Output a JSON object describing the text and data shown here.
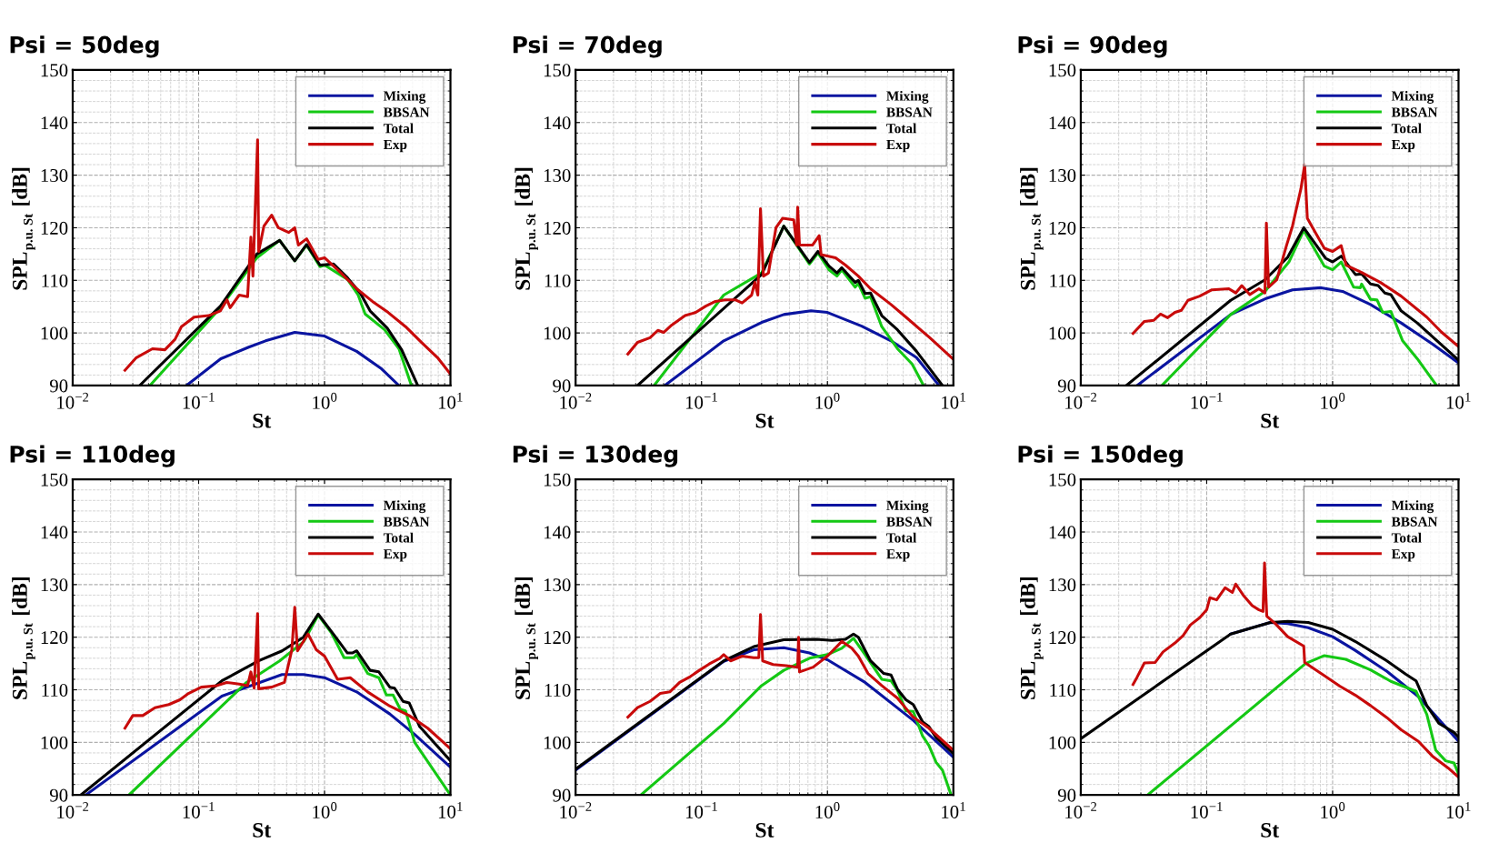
{
  "chart_data": [
    {
      "type": "line",
      "title": "Psi = 50deg",
      "xlabel": "St",
      "ylabel": "SPL$_{p.u. St}$ [dB]",
      "log": "x",
      "grid": true,
      "legend": "top right",
      "xlim": [
        0.01,
        10
      ],
      "ylim": [
        90,
        150
      ],
      "xticks": [
        {
          "value": 0.01,
          "label": "10$^{−2}$"
        },
        {
          "value": 0.1,
          "label": "10$^{−1}$"
        },
        {
          "value": 1,
          "label": "10$^{0}$"
        },
        {
          "value": 10,
          "label": "10$^{1}$"
        }
      ],
      "yticks": [
        90,
        100,
        110,
        120,
        130,
        140,
        150
      ],
      "series": [
        {
          "name": "Mixing",
          "color": "#0a14a0",
          "x": [
            0.08,
            0.15,
            0.25,
            0.34,
            0.58,
            1.0,
            1.8,
            2.8,
            3.9
          ],
          "values": [
            90,
            95.1,
            97.3,
            98.5,
            100.1,
            99.4,
            96.5,
            93.3,
            90
          ]
        },
        {
          "name": "BBSAN",
          "color": "#14c814",
          "x": [
            0.041,
            0.149,
            0.29,
            0.44,
            0.58,
            0.72,
            0.92,
            1.0,
            1.52,
            1.85,
            2.1,
            3.0,
            3.9,
            4.9
          ],
          "values": [
            90,
            104.8,
            114.3,
            117.6,
            113.7,
            116.7,
            112.6,
            112.9,
            110.2,
            107.2,
            103.6,
            100.6,
            97.0,
            90
          ]
        },
        {
          "name": "Total",
          "color": "#000000",
          "x": [
            0.034,
            0.149,
            0.29,
            0.44,
            0.58,
            0.72,
            0.92,
            1.18,
            1.52,
            1.93,
            2.3,
            3.15,
            4.1,
            5.5
          ],
          "values": [
            90,
            105.1,
            115.0,
            117.6,
            113.7,
            116.8,
            112.9,
            113.1,
            110.5,
            107.5,
            104.2,
            100.9,
            96.8,
            90
          ]
        },
        {
          "name": "Exp",
          "color": "#c80a0a",
          "x": [
            0.026,
            0.032,
            0.043,
            0.054,
            0.065,
            0.073,
            0.092,
            0.12,
            0.149,
            0.168,
            0.178,
            0.21,
            0.245,
            0.26,
            0.27,
            0.294,
            0.3,
            0.33,
            0.38,
            0.43,
            0.52,
            0.58,
            0.62,
            0.72,
            0.89,
            1.0,
            1.35,
            1.8,
            2.4,
            3.2,
            4.4,
            5.9,
            7.9,
            10
          ],
          "values": [
            92.9,
            95.3,
            97.0,
            96.8,
            98.8,
            101.2,
            103.0,
            103.3,
            104.2,
            106.3,
            104.8,
            107.2,
            106.9,
            118.2,
            110.8,
            136.7,
            115.5,
            120.3,
            122.4,
            120.0,
            119.1,
            120.0,
            116.7,
            117.9,
            114.0,
            114.3,
            111.4,
            108.4,
            106.0,
            103.9,
            101.2,
            98.2,
            95.3,
            92.2
          ]
        }
      ]
    },
    {
      "type": "line",
      "title": "Psi = 70deg",
      "xlabel": "St",
      "ylabel": "SPL$_{p.u. St}$ [dB]",
      "log": "x",
      "grid": true,
      "legend": "top right",
      "xlim": [
        0.01,
        10
      ],
      "ylim": [
        90,
        150
      ],
      "xticks": [
        {
          "value": 0.01,
          "label": "10$^{−2}$"
        },
        {
          "value": 0.1,
          "label": "10$^{−1}$"
        },
        {
          "value": 1,
          "label": "10$^{0}$"
        },
        {
          "value": 10,
          "label": "10$^{1}$"
        }
      ],
      "yticks": [
        90,
        100,
        110,
        120,
        130,
        140,
        150
      ],
      "series": [
        {
          "name": "Mixing",
          "color": "#0a14a0",
          "x": [
            0.051,
            0.15,
            0.3,
            0.45,
            0.74,
            1.0,
            1.87,
            3.2,
            5.1,
            7.7
          ],
          "values": [
            90,
            98.5,
            102.0,
            103.5,
            104.2,
            103.9,
            101.3,
            98.5,
            95.3,
            90
          ]
        },
        {
          "name": "BBSAN",
          "color": "#14c814",
          "x": [
            0.042,
            0.15,
            0.3,
            0.45,
            0.72,
            0.84,
            1.03,
            1.19,
            1.3,
            1.66,
            1.76,
            1.99,
            2.2,
            2.7,
            3.6,
            4.7,
            5.8
          ],
          "values": [
            90,
            107.2,
            111.4,
            120.3,
            113.1,
            115.2,
            112.0,
            110.8,
            112.0,
            108.7,
            109.4,
            106.6,
            106.9,
            101.2,
            97.0,
            94.1,
            90
          ]
        },
        {
          "name": "Total",
          "color": "#000000",
          "x": [
            0.031,
            0.3,
            0.45,
            0.72,
            0.84,
            1.03,
            1.19,
            1.3,
            1.66,
            1.76,
            1.99,
            2.2,
            2.7,
            3.6,
            5.1,
            8.2
          ],
          "values": [
            90,
            111.1,
            120.3,
            113.4,
            115.5,
            112.7,
            111.4,
            112.4,
            109.6,
            110.0,
            107.5,
            107.6,
            103.3,
            100.6,
            96.5,
            90
          ]
        },
        {
          "name": "Exp",
          "color": "#c80a0a",
          "x": [
            0.026,
            0.031,
            0.039,
            0.045,
            0.05,
            0.058,
            0.074,
            0.09,
            0.108,
            0.129,
            0.154,
            0.185,
            0.21,
            0.25,
            0.265,
            0.28,
            0.294,
            0.31,
            0.34,
            0.39,
            0.44,
            0.54,
            0.57,
            0.58,
            0.6,
            0.76,
            0.86,
            0.89,
            1.16,
            1.39,
            1.76,
            2.2,
            3.2,
            4.2,
            6.5,
            10
          ],
          "values": [
            96.0,
            98.2,
            99.1,
            100.5,
            100.1,
            101.5,
            103.3,
            103.9,
            105.1,
            106.0,
            106.3,
            106.3,
            105.7,
            107.2,
            109.6,
            107.2,
            123.6,
            110.8,
            111.4,
            120.0,
            121.8,
            121.5,
            116.7,
            123.9,
            116.7,
            116.7,
            118.5,
            114.9,
            114.3,
            112.9,
            110.8,
            108.4,
            105.4,
            103.0,
            99.1,
            95.0
          ]
        }
      ]
    },
    {
      "type": "line",
      "title": "Psi = 90deg",
      "xlabel": "St",
      "ylabel": "SPL$_{p.u. St}$ [dB]",
      "log": "x",
      "grid": true,
      "legend": "top right",
      "xlim": [
        0.01,
        10
      ],
      "ylim": [
        90,
        150
      ],
      "xticks": [
        {
          "value": 0.01,
          "label": "10$^{−2}$"
        },
        {
          "value": 0.1,
          "label": "10$^{−1}$"
        },
        {
          "value": 1,
          "label": "10$^{0}$"
        },
        {
          "value": 10,
          "label": "10$^{1}$"
        }
      ],
      "yticks": [
        90,
        100,
        110,
        120,
        130,
        140,
        150
      ],
      "series": [
        {
          "name": "Mixing",
          "color": "#0a14a0",
          "x": [
            0.028,
            0.155,
            0.3,
            0.48,
            0.81,
            1.2,
            2.0,
            3.5,
            6.2,
            10
          ],
          "values": [
            90,
            103.5,
            106.6,
            108.2,
            108.6,
            107.9,
            105.4,
            101.9,
            97.9,
            94.3
          ]
        },
        {
          "name": "BBSAN",
          "color": "#14c814",
          "x": [
            0.044,
            0.155,
            0.29,
            0.45,
            0.59,
            0.86,
            1.0,
            1.17,
            1.47,
            1.66,
            1.7,
            2.0,
            2.25,
            2.5,
            2.9,
            3.6,
            4.7,
            6.7
          ],
          "values": [
            90,
            103.5,
            107.9,
            113.5,
            119.5,
            112.7,
            112.0,
            113.5,
            108.7,
            108.6,
            109.3,
            106.4,
            106.3,
            103.9,
            104.1,
            98.5,
            95.1,
            90
          ]
        },
        {
          "name": "Total",
          "color": "#000000",
          "x": [
            0.023,
            0.155,
            0.29,
            0.44,
            0.59,
            0.88,
            1.0,
            1.17,
            1.52,
            1.7,
            2.0,
            2.3,
            2.6,
            2.9,
            3.5,
            4.7,
            10
          ],
          "values": [
            90,
            106.2,
            110.1,
            114.4,
            120.0,
            114.2,
            113.5,
            114.6,
            111.1,
            111.2,
            109.3,
            109.0,
            107.6,
            107.3,
            104.2,
            101.9,
            94.8
          ]
        },
        {
          "name": "Exp",
          "color": "#c80a0a",
          "x": [
            0.026,
            0.032,
            0.038,
            0.043,
            0.049,
            0.056,
            0.063,
            0.071,
            0.088,
            0.11,
            0.15,
            0.17,
            0.19,
            0.22,
            0.26,
            0.29,
            0.298,
            0.31,
            0.36,
            0.43,
            0.48,
            0.56,
            0.6,
            0.63,
            0.69,
            0.86,
            1.0,
            1.17,
            1.28,
            1.7,
            2.4,
            3.5,
            5.6,
            7.3,
            10
          ],
          "values": [
            99.9,
            102.2,
            102.4,
            103.6,
            102.9,
            103.9,
            104.3,
            106.2,
            107.0,
            108.2,
            108.4,
            107.6,
            109.0,
            107.3,
            108.4,
            107.6,
            120.9,
            108.7,
            110.1,
            116.6,
            120.3,
            127.4,
            132.0,
            121.8,
            120.1,
            116.1,
            115.5,
            116.6,
            112.9,
            111.5,
            109.6,
            107.0,
            103.0,
            100.2,
            97.4
          ]
        }
      ]
    },
    {
      "type": "line",
      "title": "Psi = 110deg",
      "xlabel": "St",
      "ylabel": "SPL$_{p.u. St}$ [dB]",
      "log": "x",
      "grid": true,
      "legend": "top right",
      "xlim": [
        0.01,
        10
      ],
      "ylim": [
        90,
        150
      ],
      "xticks": [
        {
          "value": 0.01,
          "label": "10$^{−2}$"
        },
        {
          "value": 0.1,
          "label": "10$^{−1}$"
        },
        {
          "value": 1,
          "label": "10$^{0}$"
        },
        {
          "value": 10,
          "label": "10$^{1}$"
        }
      ],
      "yticks": [
        90,
        100,
        110,
        120,
        130,
        140,
        150
      ],
      "series": [
        {
          "name": "Mixing",
          "color": "#0a14a0",
          "x": [
            0.0127,
            0.153,
            0.46,
            0.68,
            1.0,
            1.8,
            3.3,
            5.2,
            10
          ],
          "values": [
            90,
            108.8,
            112.9,
            112.9,
            112.3,
            109.6,
            105.4,
            101.5,
            95.3
          ]
        },
        {
          "name": "BBSAN",
          "color": "#14c814",
          "x": [
            0.028,
            0.24,
            0.44,
            0.68,
            0.89,
            1.13,
            1.43,
            1.71,
            1.8,
            2.2,
            2.7,
            3.1,
            3.5,
            4.0,
            4.4,
            5.2,
            10
          ],
          "values": [
            90,
            111.4,
            115.5,
            119.1,
            124.2,
            120.9,
            116.1,
            116.1,
            116.7,
            113.1,
            112.3,
            109.0,
            109.0,
            106.3,
            106.0,
            100.0,
            90
          ]
        },
        {
          "name": "Total",
          "color": "#000000",
          "x": [
            0.0116,
            0.153,
            0.3,
            0.46,
            0.68,
            0.89,
            1.2,
            1.52,
            1.66,
            1.8,
            2.3,
            2.7,
            3.3,
            3.6,
            4.2,
            4.7,
            5.7,
            10
          ],
          "values": [
            90,
            111.7,
            115.5,
            117.4,
            120.0,
            124.4,
            120.3,
            117.0,
            117.0,
            117.4,
            113.7,
            113.4,
            110.5,
            110.3,
            107.8,
            107.5,
            103.0,
            96.5
          ]
        },
        {
          "name": "Exp",
          "color": "#c80a0a",
          "x": [
            0.026,
            0.03,
            0.036,
            0.045,
            0.058,
            0.071,
            0.083,
            0.105,
            0.14,
            0.167,
            0.21,
            0.245,
            0.26,
            0.276,
            0.294,
            0.3,
            0.38,
            0.48,
            0.55,
            0.58,
            0.61,
            0.74,
            0.86,
            1.0,
            1.27,
            1.6,
            2.2,
            3.3,
            4.7,
            6.6,
            10
          ],
          "values": [
            102.7,
            105.1,
            105.1,
            106.6,
            107.2,
            108.1,
            109.3,
            110.5,
            110.8,
            111.4,
            111.1,
            110.8,
            113.4,
            110.3,
            124.5,
            110.2,
            110.5,
            111.4,
            117.6,
            125.7,
            117.4,
            120.6,
            117.6,
            116.4,
            112.0,
            112.3,
            109.6,
            106.9,
            105.1,
            102.7,
            98.8
          ]
        }
      ]
    },
    {
      "type": "line",
      "title": "Psi = 130deg",
      "xlabel": "St",
      "ylabel": "SPL$_{p.u. St}$ [dB]",
      "log": "x",
      "grid": true,
      "legend": "top right",
      "xlim": [
        0.01,
        10
      ],
      "ylim": [
        90,
        150
      ],
      "xticks": [
        {
          "value": 0.01,
          "label": "10$^{−2}$"
        },
        {
          "value": 0.1,
          "label": "10$^{−1}$"
        },
        {
          "value": 1,
          "label": "10$^{0}$"
        },
        {
          "value": 10,
          "label": "10$^{1}$"
        }
      ],
      "yticks": [
        90,
        100,
        110,
        120,
        130,
        140,
        150
      ],
      "series": [
        {
          "name": "Mixing",
          "color": "#0a14a0",
          "x": [
            0.0101,
            0.15,
            0.26,
            0.45,
            0.72,
            1.0,
            1.99,
            4.8,
            10
          ],
          "values": [
            94.8,
            115.4,
            117.6,
            118.0,
            117.0,
            115.7,
            111.4,
            104.2,
            97.2
          ]
        },
        {
          "name": "BBSAN",
          "color": "#14c814",
          "x": [
            0.033,
            0.15,
            0.3,
            0.45,
            0.72,
            1.0,
            1.3,
            1.61,
            1.99,
            2.7,
            3.2,
            3.6,
            4.2,
            4.8,
            5.7,
            6.4,
            7.3,
            8.2,
            9.6
          ],
          "values": [
            90,
            103.6,
            110.8,
            113.7,
            116.0,
            116.7,
            117.9,
            119.8,
            116.7,
            112.0,
            111.7,
            109.9,
            106.0,
            105.9,
            101.2,
            99.4,
            96.2,
            94.7,
            90
          ]
        },
        {
          "name": "Total",
          "color": "#000000",
          "x": [
            0.0101,
            0.15,
            0.26,
            0.45,
            0.81,
            1.09,
            1.39,
            1.61,
            1.76,
            2.2,
            2.8,
            3.2,
            3.6,
            4.2,
            4.8,
            5.7,
            6.4,
            7.3,
            10
          ],
          "values": [
            95.0,
            115.5,
            118.2,
            119.5,
            119.6,
            119.4,
            119.6,
            120.6,
            120.0,
            115.5,
            113.1,
            112.8,
            110.1,
            108.1,
            107.2,
            103.9,
            103.0,
            100.9,
            97.9
          ]
        },
        {
          "name": "Exp",
          "color": "#c80a0a",
          "x": [
            0.026,
            0.031,
            0.039,
            0.047,
            0.056,
            0.067,
            0.08,
            0.096,
            0.115,
            0.14,
            0.15,
            0.17,
            0.21,
            0.26,
            0.285,
            0.294,
            0.306,
            0.37,
            0.47,
            0.58,
            0.59,
            0.6,
            0.77,
            1.0,
            1.3,
            1.56,
            1.76,
            2.1,
            2.7,
            3.6,
            4.8,
            6.4,
            10
          ],
          "values": [
            104.8,
            106.6,
            107.8,
            109.3,
            109.6,
            111.4,
            112.4,
            113.7,
            114.9,
            116.0,
            116.7,
            115.5,
            116.4,
            116.1,
            116.1,
            124.3,
            115.5,
            114.8,
            114.6,
            114.3,
            120.0,
            113.4,
            114.3,
            116.4,
            119.2,
            117.9,
            116.4,
            113.1,
            110.8,
            108.4,
            104.8,
            102.7,
            98.5
          ]
        }
      ]
    },
    {
      "type": "line",
      "title": "Psi = 150deg",
      "xlabel": "St",
      "ylabel": "SPL$_{p.u. St}$ [dB]",
      "log": "x",
      "grid": true,
      "legend": "top right",
      "xlim": [
        0.01,
        10
      ],
      "ylim": [
        90,
        150
      ],
      "xticks": [
        {
          "value": 0.01,
          "label": "10$^{−2}$"
        },
        {
          "value": 0.1,
          "label": "10$^{−1}$"
        },
        {
          "value": 1,
          "label": "10$^{0}$"
        },
        {
          "value": 10,
          "label": "10$^{1}$"
        }
      ],
      "yticks": [
        90,
        100,
        110,
        120,
        130,
        140,
        150
      ],
      "series": [
        {
          "name": "Mixing",
          "color": "#0a14a0",
          "x": [
            0.155,
            0.32,
            0.44,
            0.64,
            1.0,
            1.51,
            2.7,
            4.8,
            10
          ],
          "values": [
            120.6,
            122.8,
            122.6,
            121.8,
            120.1,
            117.5,
            113.5,
            108.7,
            100.2
          ]
        },
        {
          "name": "BBSAN",
          "color": "#14c814",
          "x": [
            0.034,
            0.61,
            0.86,
            1.27,
            2.0,
            2.9,
            3.9,
            4.6,
            5.6,
            6.6,
            7.9,
            9.2,
            10
          ],
          "values": [
            90,
            115.0,
            116.5,
            115.8,
            113.8,
            111.6,
            110.4,
            109.7,
            105.3,
            98.5,
            96.5,
            96.1,
            94.0
          ]
        },
        {
          "name": "Total",
          "color": "#000000",
          "x": [
            0.01,
            0.155,
            0.32,
            0.44,
            0.64,
            1.0,
            1.51,
            2.7,
            3.8,
            4.6,
            5.6,
            7.0,
            9.2,
            10
          ],
          "values": [
            100.7,
            120.6,
            122.8,
            123.0,
            122.8,
            121.5,
            119.2,
            115.5,
            113.0,
            111.7,
            107.0,
            103.6,
            101.9,
            101.0
          ]
        },
        {
          "name": "Exp",
          "color": "#c80a0a",
          "x": [
            0.026,
            0.028,
            0.032,
            0.039,
            0.045,
            0.056,
            0.065,
            0.074,
            0.088,
            0.1,
            0.106,
            0.12,
            0.14,
            0.16,
            0.17,
            0.195,
            0.23,
            0.26,
            0.28,
            0.288,
            0.3,
            0.35,
            0.44,
            0.59,
            0.6,
            0.86,
            1.14,
            1.51,
            2.0,
            2.7,
            3.5,
            4.8,
            6.2,
            8.3,
            10
          ],
          "values": [
            111.0,
            112.4,
            115.1,
            115.2,
            117.2,
            118.9,
            120.3,
            122.3,
            123.7,
            125.2,
            127.5,
            127.1,
            129.4,
            128.5,
            130.1,
            128.0,
            126.0,
            125.2,
            124.9,
            134.1,
            124.0,
            122.6,
            120.1,
            118.3,
            115.2,
            112.7,
            110.7,
            109.0,
            107.0,
            104.7,
            102.4,
            100.2,
            97.4,
            95.1,
            93.4
          ]
        }
      ]
    }
  ]
}
